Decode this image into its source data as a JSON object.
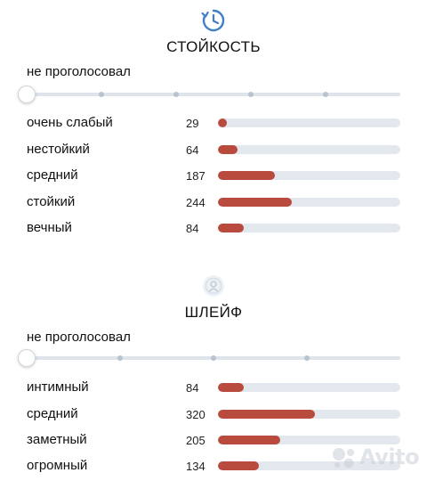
{
  "sections": [
    {
      "icon": "clock-arrow-icon",
      "title": "СТОЙКОСТЬ",
      "not_voted_label": "не проголосовал",
      "slider_steps": 5,
      "max_count": 600,
      "rows": [
        {
          "label": "очень слабый",
          "count": "29",
          "value": 29
        },
        {
          "label": "нестойкий",
          "count": "64",
          "value": 64
        },
        {
          "label": "средний",
          "count": "187",
          "value": 187
        },
        {
          "label": "стойкий",
          "count": "244",
          "value": 244
        },
        {
          "label": "вечный",
          "count": "84",
          "value": 84
        }
      ]
    },
    {
      "icon": "aura-person-icon",
      "title": "ШЛЕЙФ",
      "not_voted_label": "не проголосовал",
      "slider_steps": 4,
      "max_count": 600,
      "rows": [
        {
          "label": "интимный",
          "count": "84",
          "value": 84
        },
        {
          "label": "средний",
          "count": "320",
          "value": 320
        },
        {
          "label": "заметный",
          "count": "205",
          "value": 205
        },
        {
          "label": "огромный",
          "count": "134",
          "value": 134
        }
      ]
    }
  ],
  "colors": {
    "bar_fill": "#b84a3e",
    "bar_track": "#e3e7ee",
    "icon_accent": "#3f7fc7"
  },
  "watermark": {
    "text": "Avito"
  }
}
